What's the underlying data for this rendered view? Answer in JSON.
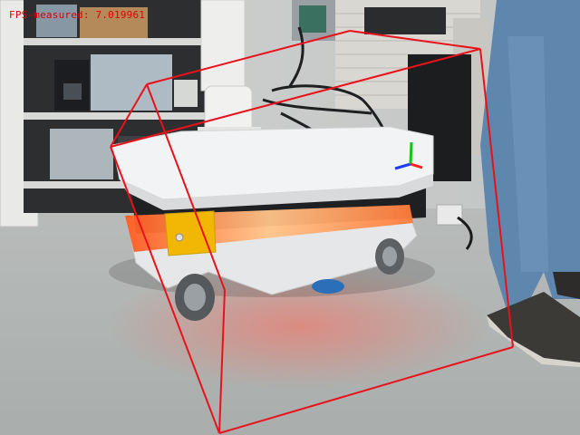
{
  "overlay": {
    "fps_label": "FPS-measured:",
    "fps_value": "7.019961"
  },
  "colors": {
    "bbox": "#e8121b",
    "axis_x": "#1d3cff",
    "axis_y": "#17c21a",
    "axis_z": "#ff2020"
  },
  "scene": {
    "objects": [
      "shelving-unit",
      "robot-arm",
      "mobile-robot",
      "cable-bundle",
      "person-legs",
      "floor"
    ]
  }
}
